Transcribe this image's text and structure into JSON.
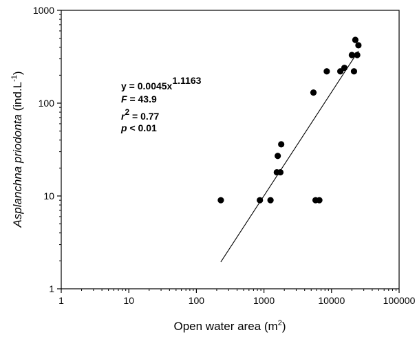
{
  "chart_data": {
    "type": "scatter",
    "xlabel": "Open water area (m",
    "xlabel_sup": "2",
    "xlabel_close": ")",
    "ylabel_italic": "Asplanchna priodonta",
    "ylabel_rest": " (ind.L",
    "ylabel_sup": "-1",
    "ylabel_close": ")",
    "x_scale": "log",
    "y_scale": "log",
    "xlim": [
      1,
      100000
    ],
    "ylim": [
      1,
      1000
    ],
    "x_ticks": [
      {
        "value": 1,
        "label": "1"
      },
      {
        "value": 10,
        "label": "10"
      },
      {
        "value": 100,
        "label": "100"
      },
      {
        "value": 1000,
        "label": "1000"
      },
      {
        "value": 10000,
        "label": "10000"
      },
      {
        "value": 100000,
        "label": "100000"
      }
    ],
    "y_ticks": [
      {
        "value": 1,
        "label": "1"
      },
      {
        "value": 10,
        "label": "10"
      },
      {
        "value": 100,
        "label": "100"
      },
      {
        "value": 1000,
        "label": "1000"
      }
    ],
    "grid": false,
    "points": [
      {
        "x": 230,
        "y": 9
      },
      {
        "x": 870,
        "y": 9
      },
      {
        "x": 1250,
        "y": 9
      },
      {
        "x": 1550,
        "y": 18
      },
      {
        "x": 1600,
        "y": 27
      },
      {
        "x": 1750,
        "y": 18
      },
      {
        "x": 1800,
        "y": 36
      },
      {
        "x": 5400,
        "y": 130
      },
      {
        "x": 5800,
        "y": 9
      },
      {
        "x": 6600,
        "y": 9
      },
      {
        "x": 8500,
        "y": 220
      },
      {
        "x": 13500,
        "y": 220
      },
      {
        "x": 15500,
        "y": 240
      },
      {
        "x": 20000,
        "y": 330
      },
      {
        "x": 21500,
        "y": 220
      },
      {
        "x": 22500,
        "y": 480
      },
      {
        "x": 24000,
        "y": 330
      },
      {
        "x": 25000,
        "y": 420
      }
    ],
    "fit": {
      "coefficient": 0.0045,
      "exponent": 1.1163,
      "x_range": [
        230,
        25000
      ]
    },
    "annotations": {
      "equation_base": "y = 0.0045x",
      "equation_exp": "1.1163",
      "f_var": "F",
      "f_rest": " = 43.9",
      "r_var": "r",
      "r_sup": "2",
      "r_rest": " = 0.77",
      "p_var": "p",
      "p_rest": " < 0.01"
    },
    "colors": {
      "marker": "#000000",
      "line": "#000000",
      "axis": "#000000"
    }
  }
}
